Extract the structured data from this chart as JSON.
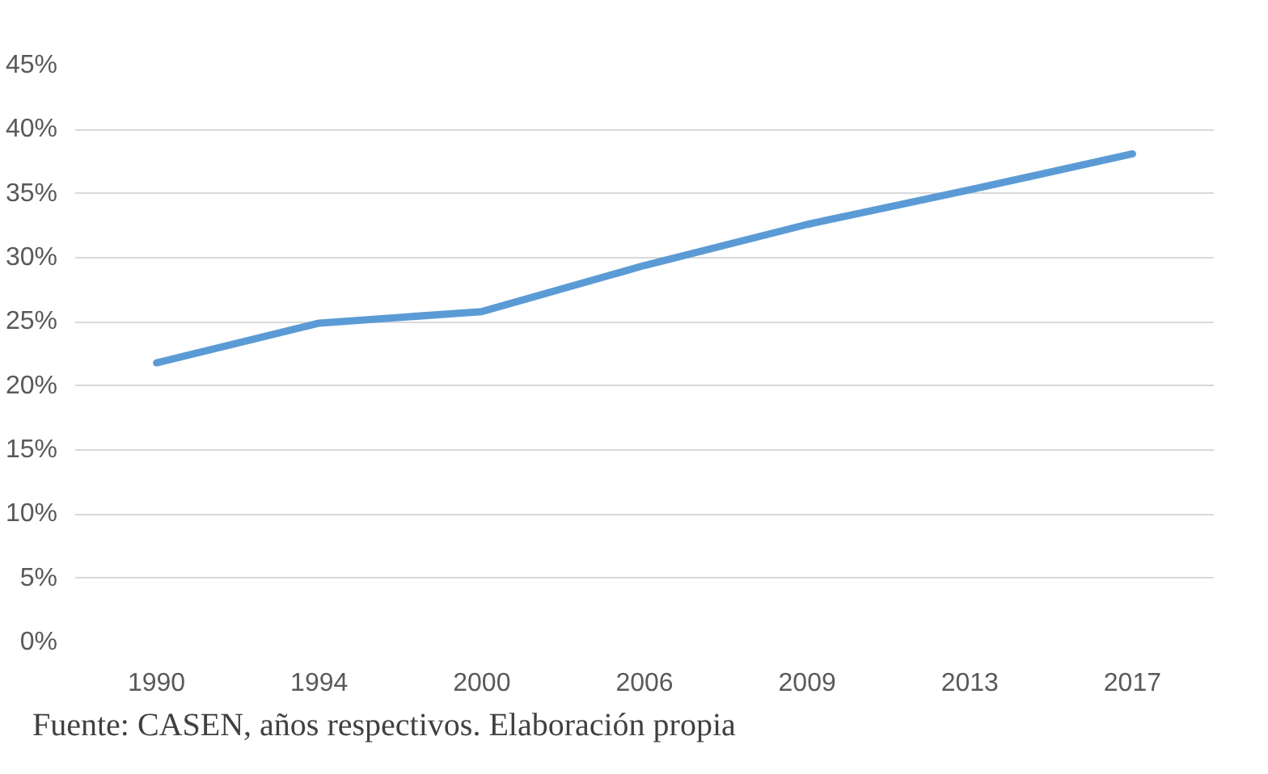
{
  "chart_data": {
    "type": "line",
    "categories": [
      "1990",
      "1994",
      "2000",
      "2006",
      "2009",
      "2013",
      "2017"
    ],
    "series": [
      {
        "color": "#5b9bd5",
        "values": [
          21.8,
          24.9,
          25.8,
          29.4,
          32.6,
          35.3,
          38.1
        ]
      }
    ],
    "ylim": [
      0,
      45
    ],
    "yticks": [
      {
        "value": 0,
        "label": "0%"
      },
      {
        "value": 5,
        "label": "5%"
      },
      {
        "value": 10,
        "label": "10%"
      },
      {
        "value": 15,
        "label": "15%"
      },
      {
        "value": 20,
        "label": "20%"
      },
      {
        "value": 25,
        "label": "25%"
      },
      {
        "value": 30,
        "label": "30%"
      },
      {
        "value": 35,
        "label": "35%"
      },
      {
        "value": 40,
        "label": "40%"
      },
      {
        "value": 45,
        "label": "45%"
      }
    ],
    "grid": "y",
    "marker": "none",
    "line_style": "solid",
    "annotations": [
      "Fuente: CASEN, años respectivos. Elaboración propia"
    ]
  }
}
